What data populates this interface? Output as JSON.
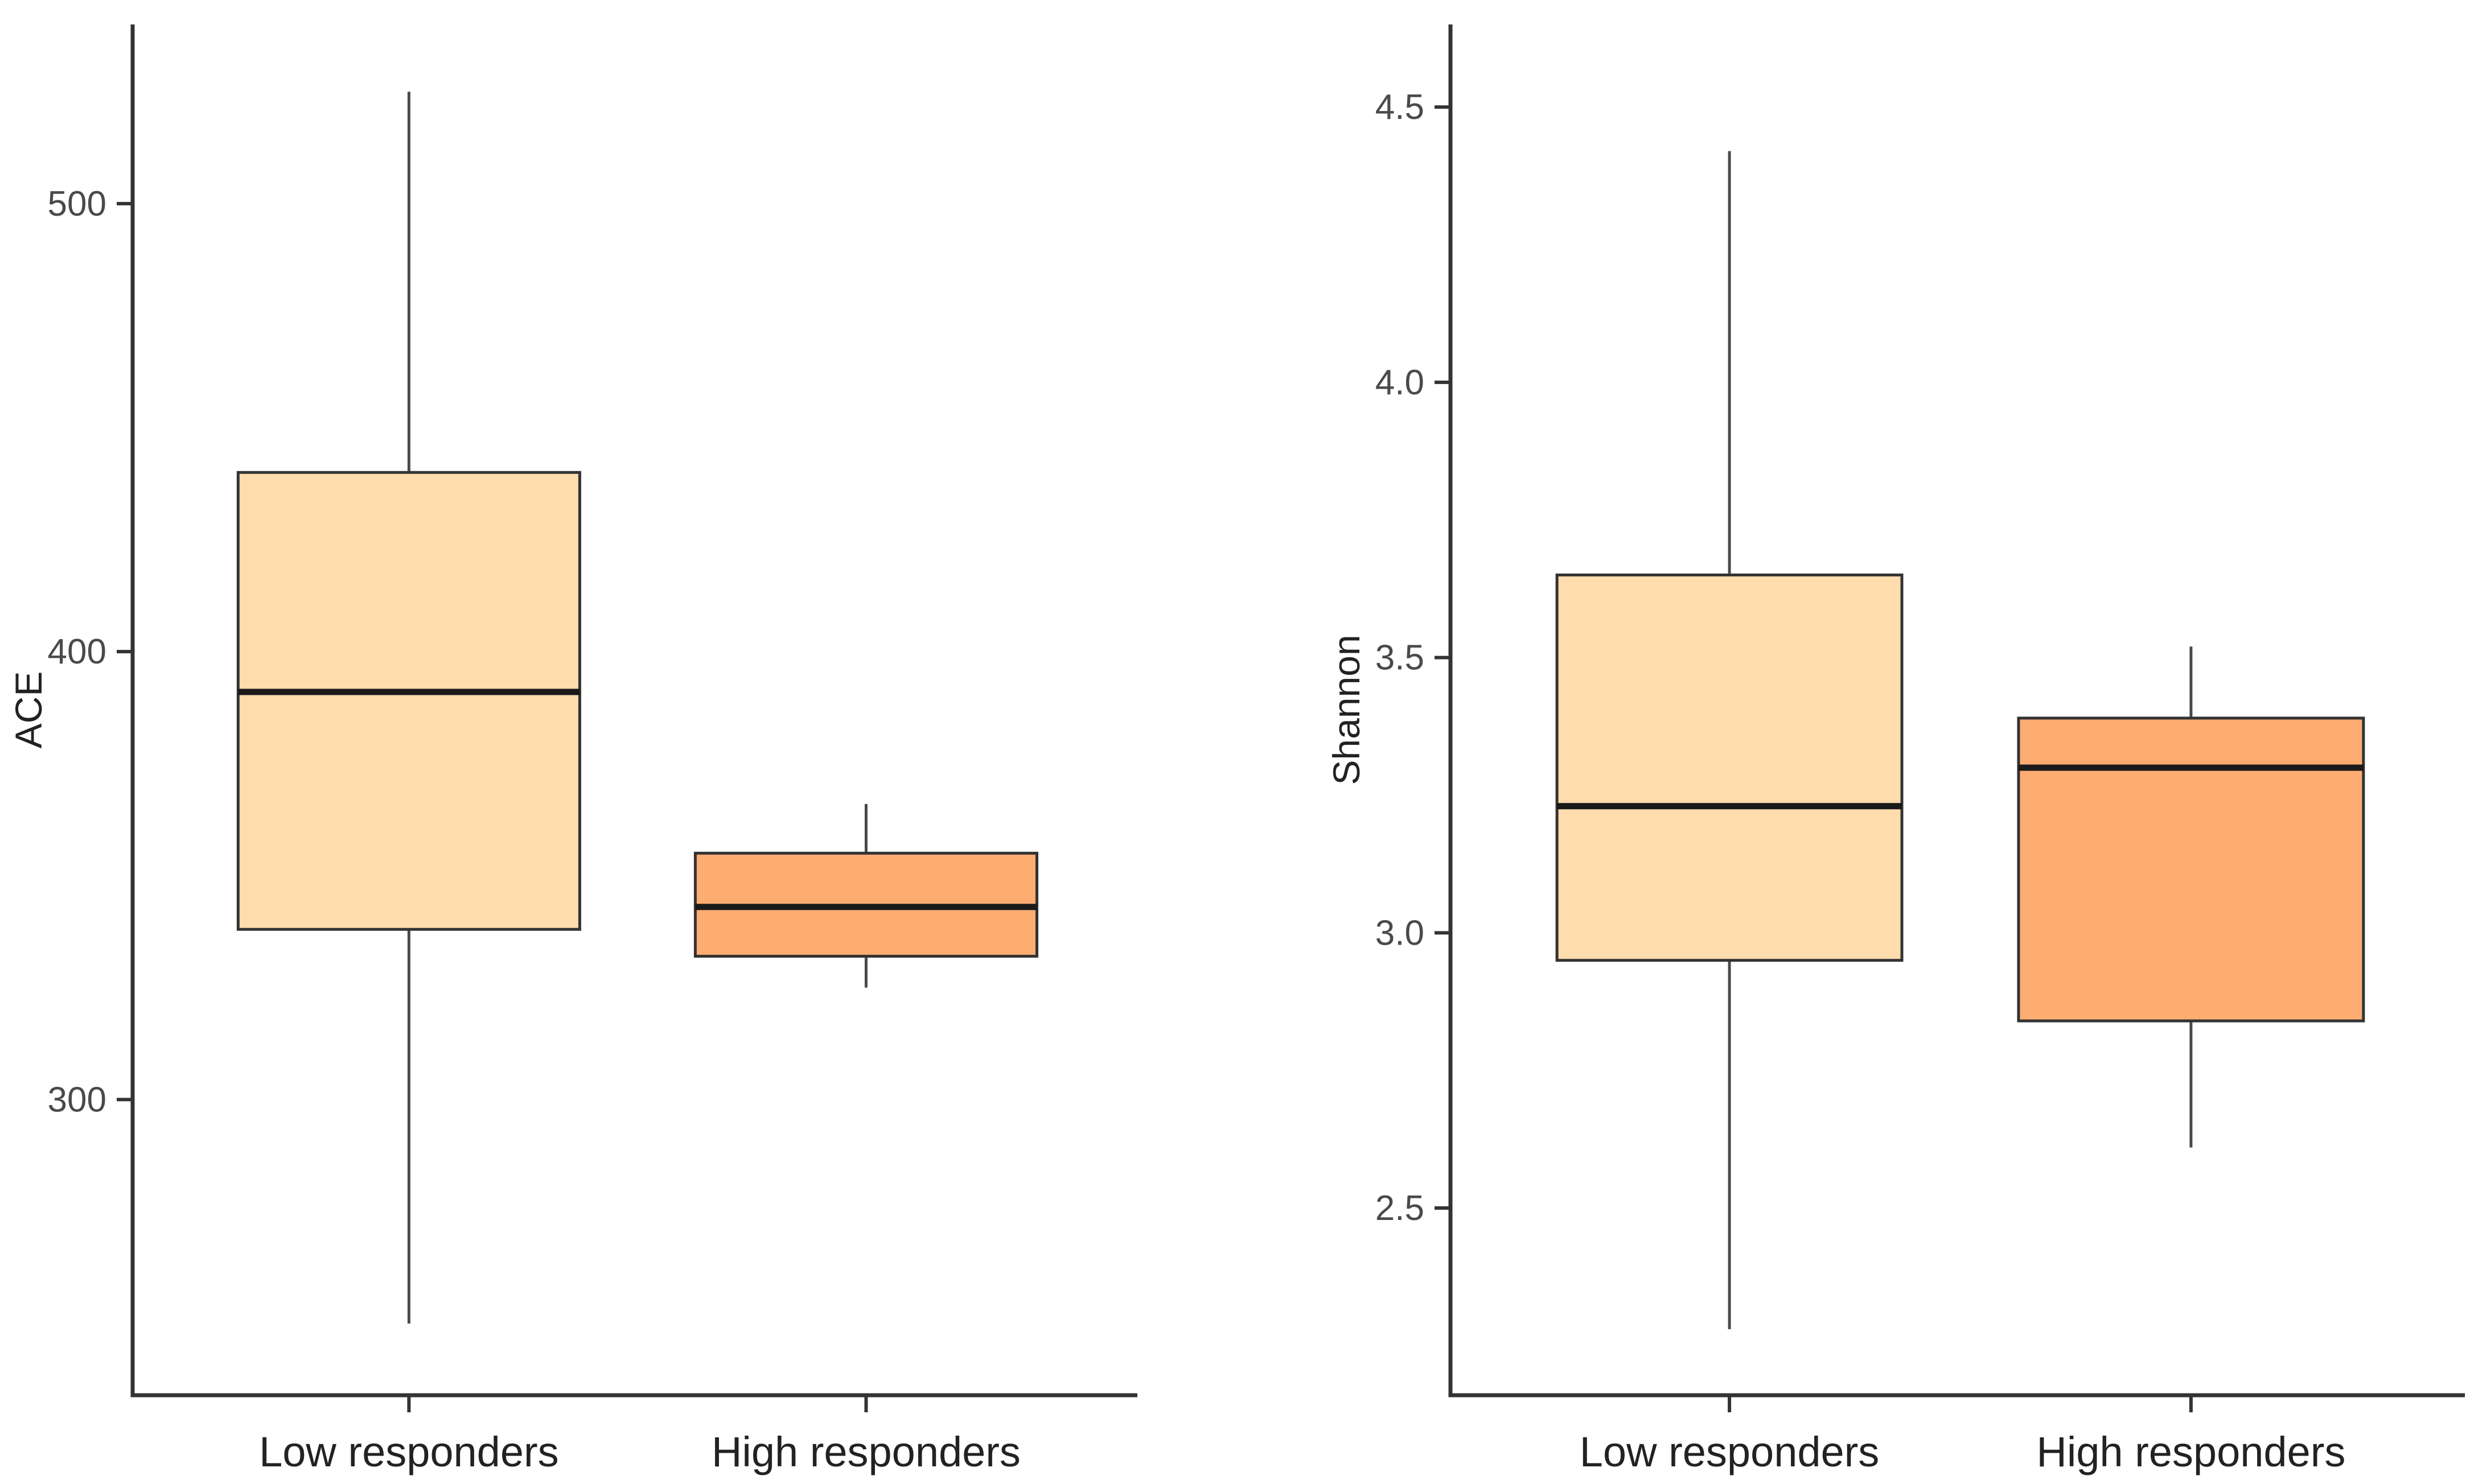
{
  "page": {
    "background": "#ffffff"
  },
  "colors": {
    "box_fill_low_responders": "#FEDCAE",
    "box_fill_high_responders": "#FDAC72",
    "box_border": "#333333",
    "median_line": "#1a1a1a",
    "whisker": "#4a4a4a",
    "axis_line": "#333333",
    "tick_mark": "#333333",
    "tick_label": "#4a4a4a",
    "axis_title": "#222222",
    "category_label": "#222222"
  },
  "chart_data": [
    {
      "type": "boxplot",
      "panel": "left",
      "title": "",
      "xlabel": "",
      "ylabel": "ACE",
      "categories": [
        "Low responders",
        "High responders"
      ],
      "ylim": [
        234,
        540
      ],
      "yticks": [
        300,
        400,
        500
      ],
      "ytick_labels": [
        "300",
        "400",
        "500"
      ],
      "grid": false,
      "legend_position": "none",
      "series": [
        {
          "name": "Low responders",
          "whisker_low": 250,
          "q1": 338,
          "median": 391,
          "q3": 440,
          "whisker_high": 525,
          "fill": "#FEDCAE",
          "outliers": []
        },
        {
          "name": "High responders",
          "whisker_low": 325,
          "q1": 332,
          "median": 343,
          "q3": 355,
          "whisker_high": 366,
          "fill": "#FDAC72",
          "outliers": []
        }
      ]
    },
    {
      "type": "boxplot",
      "panel": "right",
      "title": "",
      "xlabel": "",
      "ylabel": "Shannon",
      "categories": [
        "Low responders",
        "High responders"
      ],
      "ylim": [
        2.16,
        4.65
      ],
      "yticks": [
        2.5,
        3.0,
        3.5,
        4.0,
        4.5
      ],
      "ytick_labels": [
        "2.5",
        "3.0",
        "3.5",
        "4.0",
        "4.5"
      ],
      "grid": false,
      "legend_position": "none",
      "series": [
        {
          "name": "Low responders",
          "whisker_low": 2.28,
          "q1": 2.95,
          "median": 3.23,
          "q3": 3.65,
          "whisker_high": 4.42,
          "fill": "#FEDCAE",
          "outliers": []
        },
        {
          "name": "High responders",
          "whisker_low": 2.61,
          "q1": 2.84,
          "median": 3.3,
          "q3": 3.39,
          "whisker_high": 3.52,
          "fill": "#FDAC72",
          "outliers": []
        }
      ]
    }
  ]
}
